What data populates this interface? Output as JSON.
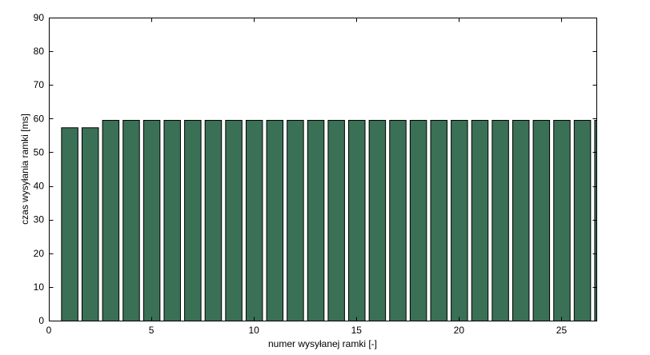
{
  "chart_data": {
    "type": "bar",
    "title": "",
    "xlabel": "numer wysyłanej ramki [-]",
    "ylabel": "czas wysyłania ramki [ms]",
    "x": [
      1,
      2,
      3,
      4,
      5,
      6,
      7,
      8,
      9,
      10,
      11,
      12,
      13,
      14,
      15,
      16,
      17,
      18,
      19,
      20,
      21,
      22,
      23,
      24,
      25,
      26,
      27
    ],
    "values": [
      57.4,
      57.4,
      59.6,
      59.6,
      59.6,
      59.6,
      59.6,
      59.6,
      59.6,
      59.6,
      59.6,
      59.6,
      59.6,
      59.6,
      59.6,
      59.6,
      59.6,
      59.6,
      59.6,
      59.6,
      59.6,
      59.6,
      59.6,
      59.6,
      59.6,
      59.6,
      59.6
    ],
    "xlim": [
      0,
      26.7
    ],
    "ylim": [
      0,
      90
    ],
    "xticks": [
      0,
      5,
      10,
      15,
      20,
      25
    ],
    "yticks": [
      0,
      10,
      20,
      30,
      40,
      50,
      60,
      70,
      80,
      90
    ],
    "grid": false,
    "bar_color": "#3a7056",
    "bar_edge_color": "#000000"
  }
}
